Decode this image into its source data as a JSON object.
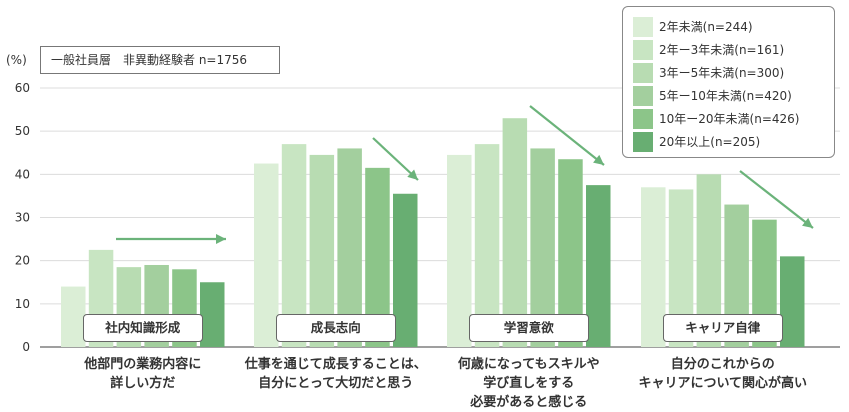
{
  "chart_data": {
    "type": "bar",
    "unit_label": "(%)",
    "sample_label": "一般社員層　非異動経験者 n=1756",
    "ylim": [
      0,
      60
    ],
    "yticks": [
      "0",
      "10",
      "20",
      "30",
      "40",
      "50",
      "60"
    ],
    "grid": true,
    "legend_position": "top-right",
    "groups": [
      {
        "label": "社内知識形成",
        "category_lines": [
          "他部門の業務内容に",
          "詳しい方だ"
        ]
      },
      {
        "label": "成長志向",
        "category_lines": [
          "仕事を通じて成長することは、",
          "自分にとって大切だと思う"
        ]
      },
      {
        "label": "学習意欲",
        "category_lines": [
          "何歳になってもスキルや",
          "学び直しをする",
          "必要があると感じる"
        ]
      },
      {
        "label": "キャリア自律",
        "category_lines": [
          "自分のこれからの",
          "キャリアについて関心が高い"
        ]
      }
    ],
    "series": [
      {
        "name": "2年未満(n=244)",
        "color": "#dbeed6",
        "values": [
          14,
          42.5,
          44.5,
          37
        ]
      },
      {
        "name": "2年ー3年未満(n=161)",
        "color": "#c8e5c2",
        "values": [
          22.5,
          47,
          47,
          36.5
        ]
      },
      {
        "name": "3年ー5年未満(n=300)",
        "color": "#b8dcb2",
        "values": [
          18.5,
          44.5,
          53,
          40
        ]
      },
      {
        "name": "5年ー10年未満(n=420)",
        "color": "#a3cf9e",
        "values": [
          19,
          46,
          46,
          33
        ]
      },
      {
        "name": "10年ー20年未満(n=426)",
        "color": "#8cc589",
        "values": [
          18,
          41.5,
          43.5,
          29.5
        ]
      },
      {
        "name": "20年以上(n=205)",
        "color": "#68ae72",
        "values": [
          15,
          35.5,
          37.5,
          21
        ]
      }
    ],
    "arrow_color": "#6bb37a"
  }
}
